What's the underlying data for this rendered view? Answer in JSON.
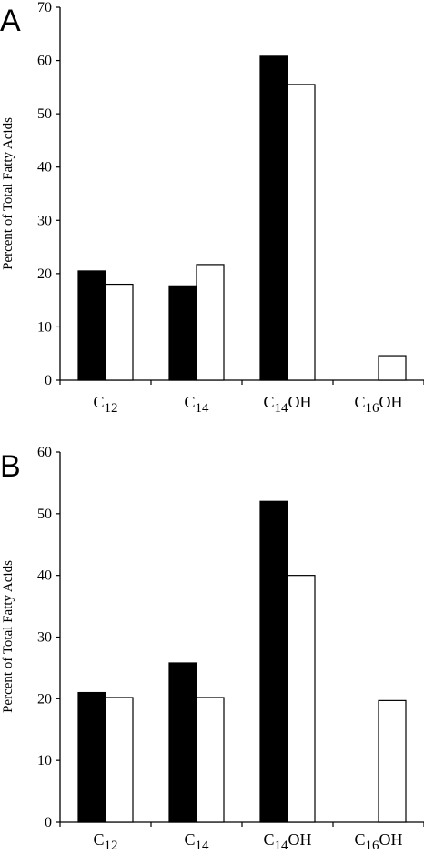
{
  "chart_data": [
    {
      "panel_label": "A",
      "type": "bar",
      "categories": [
        {
          "base": "C",
          "sub": "12",
          "suffix": ""
        },
        {
          "base": "C",
          "sub": "14",
          "suffix": ""
        },
        {
          "base": "C",
          "sub": "14",
          "suffix": "OH"
        },
        {
          "base": "C",
          "sub": "16",
          "suffix": "OH"
        }
      ],
      "series": [
        {
          "color": "#000000",
          "values": [
            20.5,
            17.7,
            60.8,
            0
          ]
        },
        {
          "color": "#ffffff",
          "values": [
            18.0,
            21.7,
            55.5,
            4.6
          ]
        }
      ],
      "ylabel": "Percent of Total Fatty Acids",
      "ylim": [
        0,
        70
      ],
      "yticks": [
        0,
        10,
        20,
        30,
        40,
        50,
        60,
        70
      ]
    },
    {
      "panel_label": "B",
      "type": "bar",
      "categories": [
        {
          "base": "C",
          "sub": "12",
          "suffix": ""
        },
        {
          "base": "C",
          "sub": "14",
          "suffix": ""
        },
        {
          "base": "C",
          "sub": "14",
          "suffix": "OH"
        },
        {
          "base": "C",
          "sub": "16",
          "suffix": "OH"
        }
      ],
      "series": [
        {
          "color": "#000000",
          "values": [
            21.0,
            25.8,
            52.0,
            0
          ]
        },
        {
          "color": "#ffffff",
          "values": [
            20.2,
            20.2,
            40.0,
            19.7
          ]
        }
      ],
      "ylabel": "Percent of Total Fatty Acids",
      "ylim": [
        0,
        60
      ],
      "yticks": [
        0,
        10,
        20,
        30,
        40,
        50,
        60
      ]
    }
  ]
}
